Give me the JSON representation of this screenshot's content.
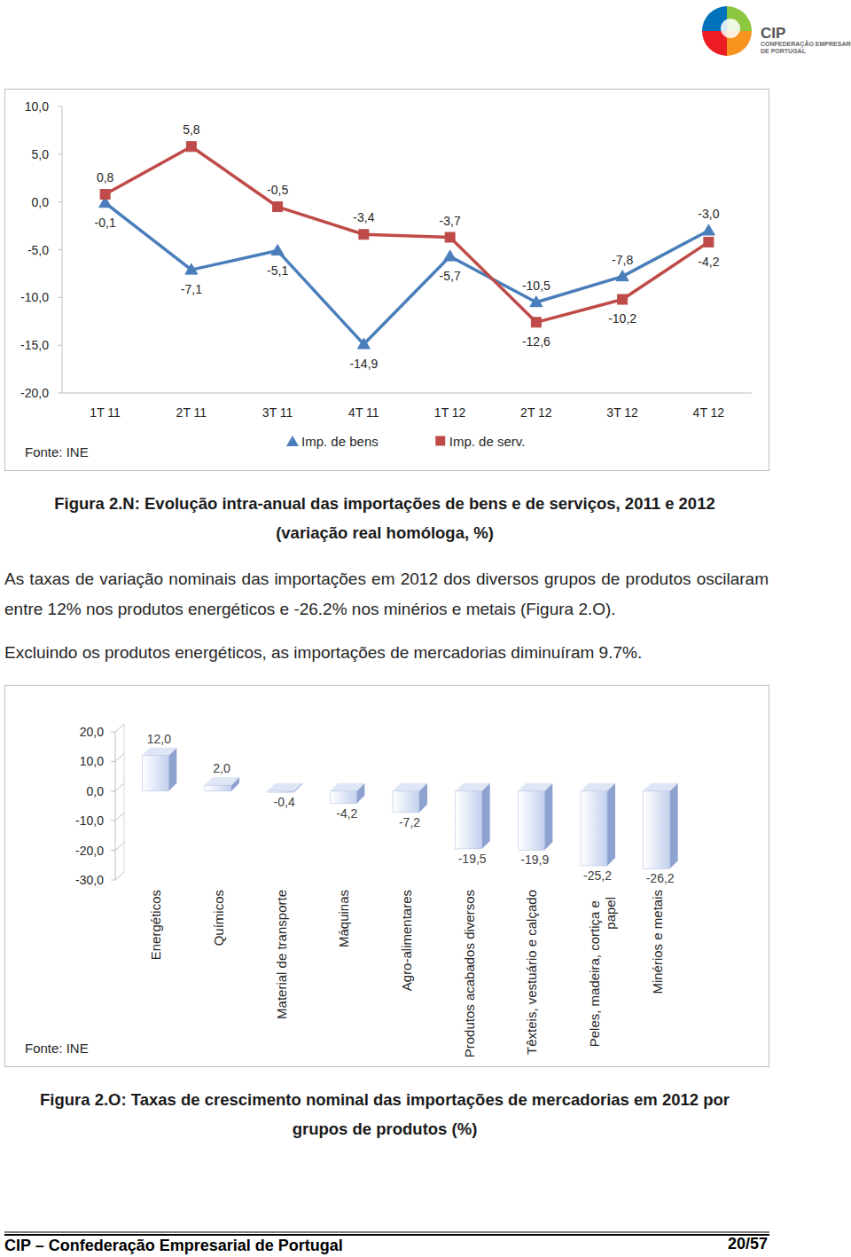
{
  "header": {
    "logo": "CIP",
    "logo_subtitle": [
      "CONFEDERAÇÃO EMPRESARIAL",
      "DE PORTUGAL"
    ]
  },
  "chart_data": [
    {
      "type": "line",
      "categories": [
        "1T 11",
        "2T 11",
        "3T 11",
        "4T 11",
        "1T 12",
        "2T 12",
        "3T 12",
        "4T 12"
      ],
      "series": [
        {
          "name": "Imp. de bens",
          "color": "#4a7ebb",
          "marker": "triangle",
          "values": [
            -0.1,
            -7.1,
            -5.1,
            -14.9,
            -5.7,
            -10.5,
            -7.8,
            -3.0
          ],
          "value_labels": [
            "-0,1",
            "-7,1",
            "-5,1",
            "-14,9",
            "-5,7",
            "-10,5",
            "-7,8",
            "-3,0"
          ]
        },
        {
          "name": "Imp. de serv.",
          "color": "#be4b48",
          "marker": "square",
          "values": [
            0.8,
            5.8,
            -0.5,
            -3.4,
            -3.7,
            -12.6,
            -10.2,
            -4.2
          ],
          "value_labels": [
            "0,8",
            "5,8",
            "-0,5",
            "-3,4",
            "-3,7",
            "-12,6",
            "-10,2",
            "-4,2"
          ]
        }
      ],
      "ylim": [
        -20,
        10
      ],
      "yticks": [
        {
          "value": -20,
          "label": "-20,0"
        },
        {
          "value": -15,
          "label": "-15,0"
        },
        {
          "value": -10,
          "label": "-10,0"
        },
        {
          "value": -5,
          "label": "-5,0"
        },
        {
          "value": 0,
          "label": "0,0"
        },
        {
          "value": 5,
          "label": "5,0"
        },
        {
          "value": 10,
          "label": "10,0"
        }
      ],
      "grid": false,
      "legend": "bottom",
      "data_labels": true,
      "source": "Fonte: INE"
    },
    {
      "type": "bar",
      "categories": [
        "Energéticos",
        "Químicos",
        "Material de transporte",
        "Máquinas",
        "Agro-alimentares",
        "Produtos acabados diversos",
        "Têxteis, vestuário e calçado",
        "Peles, madeira, cortiça e papel",
        "Minérios e metais"
      ],
      "values": [
        12.0,
        2.0,
        -0.4,
        -4.2,
        -7.2,
        -19.5,
        -19.9,
        -25.2,
        -26.2
      ],
      "value_labels": [
        "12,0",
        "2,0",
        "-0,4",
        "-4,2",
        "-7,2",
        "-19,5",
        "-19,9",
        "-25,2",
        "-26,2"
      ],
      "color": "#c3d1ee",
      "ylim": [
        -30,
        20
      ],
      "yticks": [
        {
          "value": -30,
          "label": "-30,0"
        },
        {
          "value": -20,
          "label": "-20,0"
        },
        {
          "value": -10,
          "label": "-10,0"
        },
        {
          "value": 0,
          "label": "0,0"
        },
        {
          "value": 10,
          "label": "10,0"
        },
        {
          "value": 20,
          "label": "20,0"
        }
      ],
      "grid": false,
      "data_labels": true,
      "source": "Fonte: INE"
    }
  ],
  "captions": [
    [
      "Figura 2.N: Evolução intra-anual das importações de bens e de serviços, 2011 e 2012",
      "(variação real homóloga, %)"
    ],
    [
      "Figura 2.O: Taxas de crescimento nominal das importações de mercadorias em 2012 por",
      "grupos de produtos (%)"
    ]
  ],
  "paragraphs": [
    "As taxas de variação nominais das importações em 2012 dos diversos grupos de produtos oscilaram entre 12% nos produtos energéticos e -26.2% nos minérios e metais (Figura 2.O).",
    "Excluindo os produtos energéticos, as importações de mercadorias diminuíram 9.7%."
  ],
  "footer": {
    "left": "CIP – Confederação Empresarial de Portugal",
    "page": "20/57"
  }
}
